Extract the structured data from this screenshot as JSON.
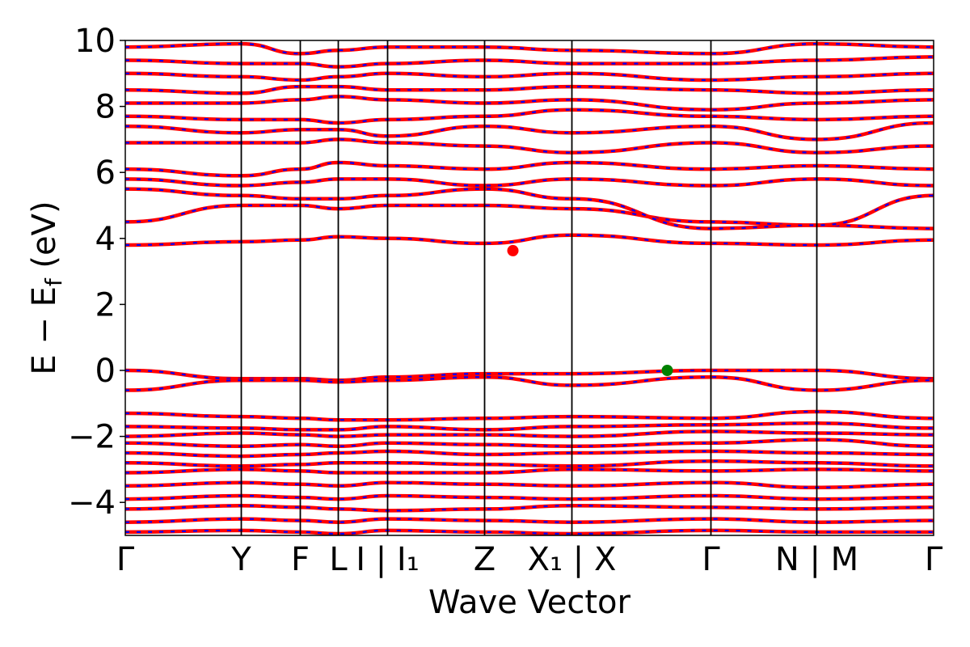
{
  "chart_data": {
    "type": "line",
    "xlabel": "Wave Vector",
    "ylabel": "E − E_f (eV)",
    "ylabel_main": "E − E",
    "ylabel_sub": "f",
    "ylabel_unit": " (eV)",
    "ylim": [
      -5,
      10
    ],
    "yticks": [
      10,
      8,
      6,
      4,
      2,
      0,
      -2,
      -4
    ],
    "ytick_labels": [
      "10",
      "8",
      "6",
      "4",
      "2",
      "0",
      "−2",
      "−4"
    ],
    "xlim": [
      0,
      1
    ],
    "high_symmetry_points": [
      {
        "label": "Γ",
        "x": 0.0
      },
      {
        "label": "Y",
        "x": 0.1435
      },
      {
        "label": "F",
        "x": 0.2165
      },
      {
        "label": "L",
        "x": 0.2635
      },
      {
        "label": "I | I₁",
        "x": 0.3245
      },
      {
        "label": "Z",
        "x": 0.4445
      },
      {
        "label": "X₁ | X",
        "x": 0.5525
      },
      {
        "label": "Γ",
        "x": 0.7245
      },
      {
        "label": "N | M",
        "x": 0.8555
      },
      {
        "label": "Γ",
        "x": 1.0
      }
    ],
    "markers": [
      {
        "name": "CBM",
        "x": 0.4795,
        "y": 3.63,
        "color": "#ff0000"
      },
      {
        "name": "VBM",
        "x": 0.6705,
        "y": 0.0,
        "color": "#008000"
      }
    ],
    "series_style": {
      "spin_up": "#0000ff",
      "spin_down": "#ff0000"
    },
    "band_edges": {
      "conduction_min": 3.63,
      "valence_max": 0.0
    },
    "bands_below_gap": [
      [
        0.0,
        -0.25,
        -0.25,
        -0.3,
        -0.2,
        -0.1,
        -0.1,
        0.0,
        0.0,
        -0.25,
        0.0
      ],
      [
        -0.6,
        -0.3,
        -0.3,
        -0.35,
        -0.3,
        -0.2,
        -0.45,
        -0.2,
        -0.6,
        -0.3,
        -0.6
      ],
      [
        -1.3,
        -1.4,
        -1.45,
        -1.5,
        -1.5,
        -1.45,
        -1.4,
        -1.45,
        -1.25,
        -1.45,
        -1.3
      ],
      [
        -1.7,
        -1.75,
        -1.8,
        -1.8,
        -1.7,
        -1.8,
        -1.7,
        -1.65,
        -1.6,
        -1.75,
        -1.7
      ],
      [
        -2.0,
        -1.9,
        -1.95,
        -2.0,
        -1.95,
        -1.95,
        -2.0,
        -1.85,
        -1.9,
        -1.95,
        -2.0
      ],
      [
        -2.2,
        -2.3,
        -2.25,
        -2.3,
        -2.2,
        -2.25,
        -2.3,
        -2.2,
        -2.1,
        -2.3,
        -2.2
      ],
      [
        -2.5,
        -2.6,
        -2.55,
        -2.5,
        -2.45,
        -2.55,
        -2.5,
        -2.45,
        -2.5,
        -2.55,
        -2.5
      ],
      [
        -2.8,
        -2.9,
        -2.85,
        -2.8,
        -2.8,
        -2.85,
        -2.9,
        -2.75,
        -2.8,
        -2.9,
        -2.8
      ],
      [
        -3.1,
        -3.0,
        -3.05,
        -3.1,
        -3.1,
        -3.1,
        -3.0,
        -3.05,
        -3.0,
        -3.05,
        -3.1
      ],
      [
        -3.5,
        -3.4,
        -3.45,
        -3.5,
        -3.4,
        -3.45,
        -3.5,
        -3.4,
        -3.55,
        -3.45,
        -3.5
      ],
      [
        -3.9,
        -3.8,
        -3.85,
        -3.9,
        -3.8,
        -3.85,
        -3.9,
        -3.8,
        -3.9,
        -3.85,
        -3.9
      ],
      [
        -4.2,
        -4.1,
        -4.15,
        -4.2,
        -4.25,
        -4.2,
        -4.1,
        -4.15,
        -4.2,
        -4.15,
        -4.2
      ],
      [
        -4.6,
        -4.5,
        -4.55,
        -4.6,
        -4.5,
        -4.55,
        -4.6,
        -4.5,
        -4.6,
        -4.55,
        -4.6
      ],
      [
        -4.9,
        -4.85,
        -4.9,
        -4.95,
        -4.85,
        -4.9,
        -4.95,
        -4.85,
        -4.9,
        -4.9,
        -4.9
      ]
    ],
    "bands_above_gap": [
      [
        3.8,
        3.9,
        3.95,
        4.05,
        4.0,
        3.85,
        4.1,
        3.85,
        3.8,
        3.95,
        3.8
      ],
      [
        4.5,
        5.0,
        5.0,
        4.9,
        5.0,
        5.0,
        4.9,
        4.5,
        4.4,
        4.3,
        4.4
      ],
      [
        5.5,
        5.3,
        5.2,
        5.2,
        5.3,
        5.5,
        5.2,
        4.3,
        4.4,
        5.3,
        5.5
      ],
      [
        5.8,
        5.6,
        5.7,
        5.8,
        5.8,
        5.6,
        5.8,
        5.6,
        5.8,
        5.6,
        5.8
      ],
      [
        6.1,
        5.9,
        6.1,
        6.3,
        6.2,
        6.1,
        6.3,
        6.1,
        6.2,
        6.1,
        6.1
      ],
      [
        6.9,
        6.9,
        6.9,
        7.0,
        6.9,
        6.8,
        6.6,
        6.9,
        6.6,
        6.8,
        6.9
      ],
      [
        7.4,
        7.2,
        7.3,
        7.3,
        7.1,
        7.4,
        7.2,
        7.4,
        7.0,
        7.5,
        7.4
      ],
      [
        7.7,
        7.6,
        7.6,
        7.5,
        7.6,
        7.7,
        7.9,
        7.7,
        7.6,
        7.7,
        7.7
      ],
      [
        8.1,
        8.1,
        8.2,
        8.3,
        8.2,
        8.1,
        8.2,
        7.9,
        8.1,
        8.2,
        8.1
      ],
      [
        8.5,
        8.4,
        8.6,
        8.6,
        8.5,
        8.5,
        8.6,
        8.5,
        8.4,
        8.5,
        8.5
      ],
      [
        9.0,
        8.9,
        8.8,
        8.9,
        9.0,
        8.9,
        9.0,
        8.8,
        8.9,
        9.0,
        9.0
      ],
      [
        9.4,
        9.3,
        9.3,
        9.2,
        9.3,
        9.4,
        9.3,
        9.3,
        9.4,
        9.5,
        9.4
      ],
      [
        9.8,
        9.9,
        9.6,
        9.7,
        9.8,
        9.8,
        9.7,
        9.6,
        9.9,
        9.8,
        9.8
      ]
    ]
  }
}
